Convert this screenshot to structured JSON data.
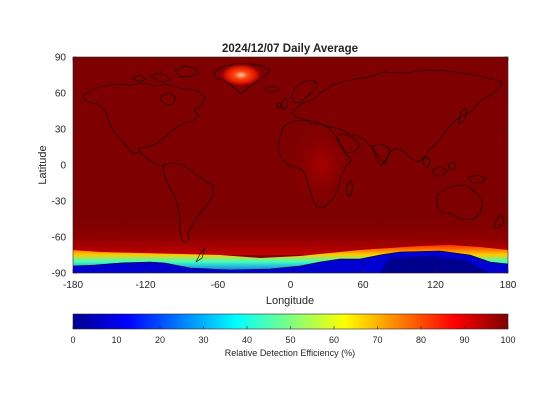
{
  "map": {
    "title": "2024/12/07 Daily Average",
    "xlabel": "Longitude",
    "ylabel": "Latitude",
    "x_ticks": [
      "-180",
      "-120",
      "-60",
      "0",
      "60",
      "120",
      "180"
    ],
    "y_ticks": [
      "90",
      "60",
      "30",
      "0",
      "-30",
      "-60",
      "-90"
    ],
    "coastline_color": "#000000",
    "colormap": "jet",
    "colors": {
      "dominant": "#7f0000",
      "greenland_hotspot": "#ff3300",
      "antarctic_margin": "#ff9900",
      "antarctic_interior": "#0000c8"
    }
  },
  "colorbar": {
    "label": "Relative Detection Efficiency (%)",
    "ticks": [
      "0",
      "10",
      "20",
      "30",
      "40",
      "50",
      "60",
      "70",
      "80",
      "90",
      "100"
    ],
    "range": [
      0,
      100
    ]
  },
  "chart_data": {
    "type": "heatmap",
    "title": "2024/12/07 Daily Average",
    "xlabel": "Longitude",
    "ylabel": "Latitude",
    "xlim": [
      -180,
      180
    ],
    "ylim": [
      -90,
      90
    ],
    "color_range": [
      0,
      100
    ],
    "color_label": "Relative Detection Efficiency (%)",
    "regions": [
      {
        "region": "global background",
        "value": 98
      },
      {
        "region": "central Greenland",
        "value": 88
      },
      {
        "region": "Antarctic coast",
        "value": 70
      },
      {
        "region": "Antarctic interior",
        "value": 5
      }
    ]
  }
}
